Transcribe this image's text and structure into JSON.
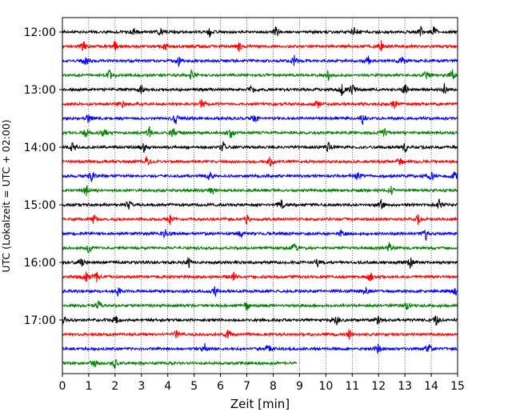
{
  "chart_data": {
    "type": "line",
    "title": "",
    "xlabel": "Zeit  [min]",
    "ylabel": "UTC (Lokalzeit = UTC + 02:00)",
    "xlim": [
      0,
      15
    ],
    "x_ticks": [
      0,
      1,
      2,
      3,
      4,
      5,
      6,
      7,
      8,
      9,
      10,
      11,
      12,
      13,
      14,
      15
    ],
    "y_ticks": [
      {
        "label": "12:00",
        "trace_index": 0
      },
      {
        "label": "13:00",
        "trace_index": 4
      },
      {
        "label": "14:00",
        "trace_index": 8
      },
      {
        "label": "15:00",
        "trace_index": 12
      },
      {
        "label": "16:00",
        "trace_index": 16
      },
      {
        "label": "17:00",
        "trace_index": 20
      }
    ],
    "grid_x": true,
    "grid_style": "dotted",
    "trace_minutes": 15,
    "last_trace_minutes": 8.9,
    "series_colors": [
      "#000000",
      "#ff0000",
      "#0000ff",
      "#008000"
    ],
    "traces": [
      {
        "start": "12:00",
        "color": "#000000",
        "events": [
          2.7,
          3.7,
          5.6,
          8.1,
          11.1,
          13.6,
          14.1
        ]
      },
      {
        "start": "12:15",
        "color": "#ff0000",
        "events": [
          0.8,
          2.0,
          3.9,
          6.7,
          12.1
        ]
      },
      {
        "start": "12:30",
        "color": "#0000ff",
        "events": [
          0.9,
          4.4,
          8.8,
          11.6,
          12.9
        ]
      },
      {
        "start": "12:45",
        "color": "#008000",
        "events": [
          1.8,
          4.9,
          10.1,
          13.8,
          14.8
        ]
      },
      {
        "start": "13:00",
        "color": "#000000",
        "events": [
          3.0,
          7.2,
          10.6,
          11.0,
          13.0,
          14.5
        ]
      },
      {
        "start": "13:15",
        "color": "#ff0000",
        "events": [
          2.3,
          5.3,
          9.7,
          12.6
        ]
      },
      {
        "start": "13:30",
        "color": "#0000ff",
        "events": [
          1.0,
          4.3,
          7.3,
          11.4
        ]
      },
      {
        "start": "13:45",
        "color": "#008000",
        "events": [
          0.9,
          1.6,
          3.3,
          4.2,
          6.4,
          12.2
        ]
      },
      {
        "start": "14:00",
        "color": "#000000",
        "events": [
          0.4,
          3.1,
          6.1,
          10.1,
          13.0
        ]
      },
      {
        "start": "14:15",
        "color": "#ff0000",
        "events": [
          3.2,
          7.9,
          12.8
        ]
      },
      {
        "start": "14:30",
        "color": "#0000ff",
        "events": [
          1.1,
          5.6,
          11.2,
          14.0,
          14.9
        ]
      },
      {
        "start": "14:45",
        "color": "#008000",
        "events": [
          0.9,
          5.7,
          12.5
        ]
      },
      {
        "start": "15:00",
        "color": "#000000",
        "events": [
          2.5,
          8.3,
          12.1,
          14.3
        ]
      },
      {
        "start": "15:15",
        "color": "#ff0000",
        "events": [
          1.2,
          4.1,
          7.0,
          13.5
        ]
      },
      {
        "start": "15:30",
        "color": "#0000ff",
        "events": [
          3.9,
          6.8,
          10.6,
          13.8
        ]
      },
      {
        "start": "15:45",
        "color": "#008000",
        "events": [
          1.0,
          8.8,
          12.4
        ]
      },
      {
        "start": "16:00",
        "color": "#000000",
        "events": [
          0.7,
          4.8,
          9.7,
          13.2
        ]
      },
      {
        "start": "16:15",
        "color": "#ff0000",
        "events": [
          0.9,
          1.3,
          6.5,
          11.7
        ]
      },
      {
        "start": "16:30",
        "color": "#0000ff",
        "events": [
          2.1,
          5.8,
          11.5,
          14.9
        ]
      },
      {
        "start": "16:45",
        "color": "#008000",
        "events": [
          1.4,
          7.0,
          13.1
        ]
      },
      {
        "start": "17:00",
        "color": "#000000",
        "events": [
          0.1,
          2.0,
          10.4,
          12.0,
          14.2
        ]
      },
      {
        "start": "17:15",
        "color": "#ff0000",
        "events": [
          4.3,
          6.3,
          10.9
        ]
      },
      {
        "start": "17:30",
        "color": "#0000ff",
        "events": [
          5.4,
          7.8,
          12.0,
          13.9
        ]
      },
      {
        "start": "17:45",
        "color": "#008000",
        "events": [
          1.2,
          2.0
        ]
      }
    ]
  }
}
